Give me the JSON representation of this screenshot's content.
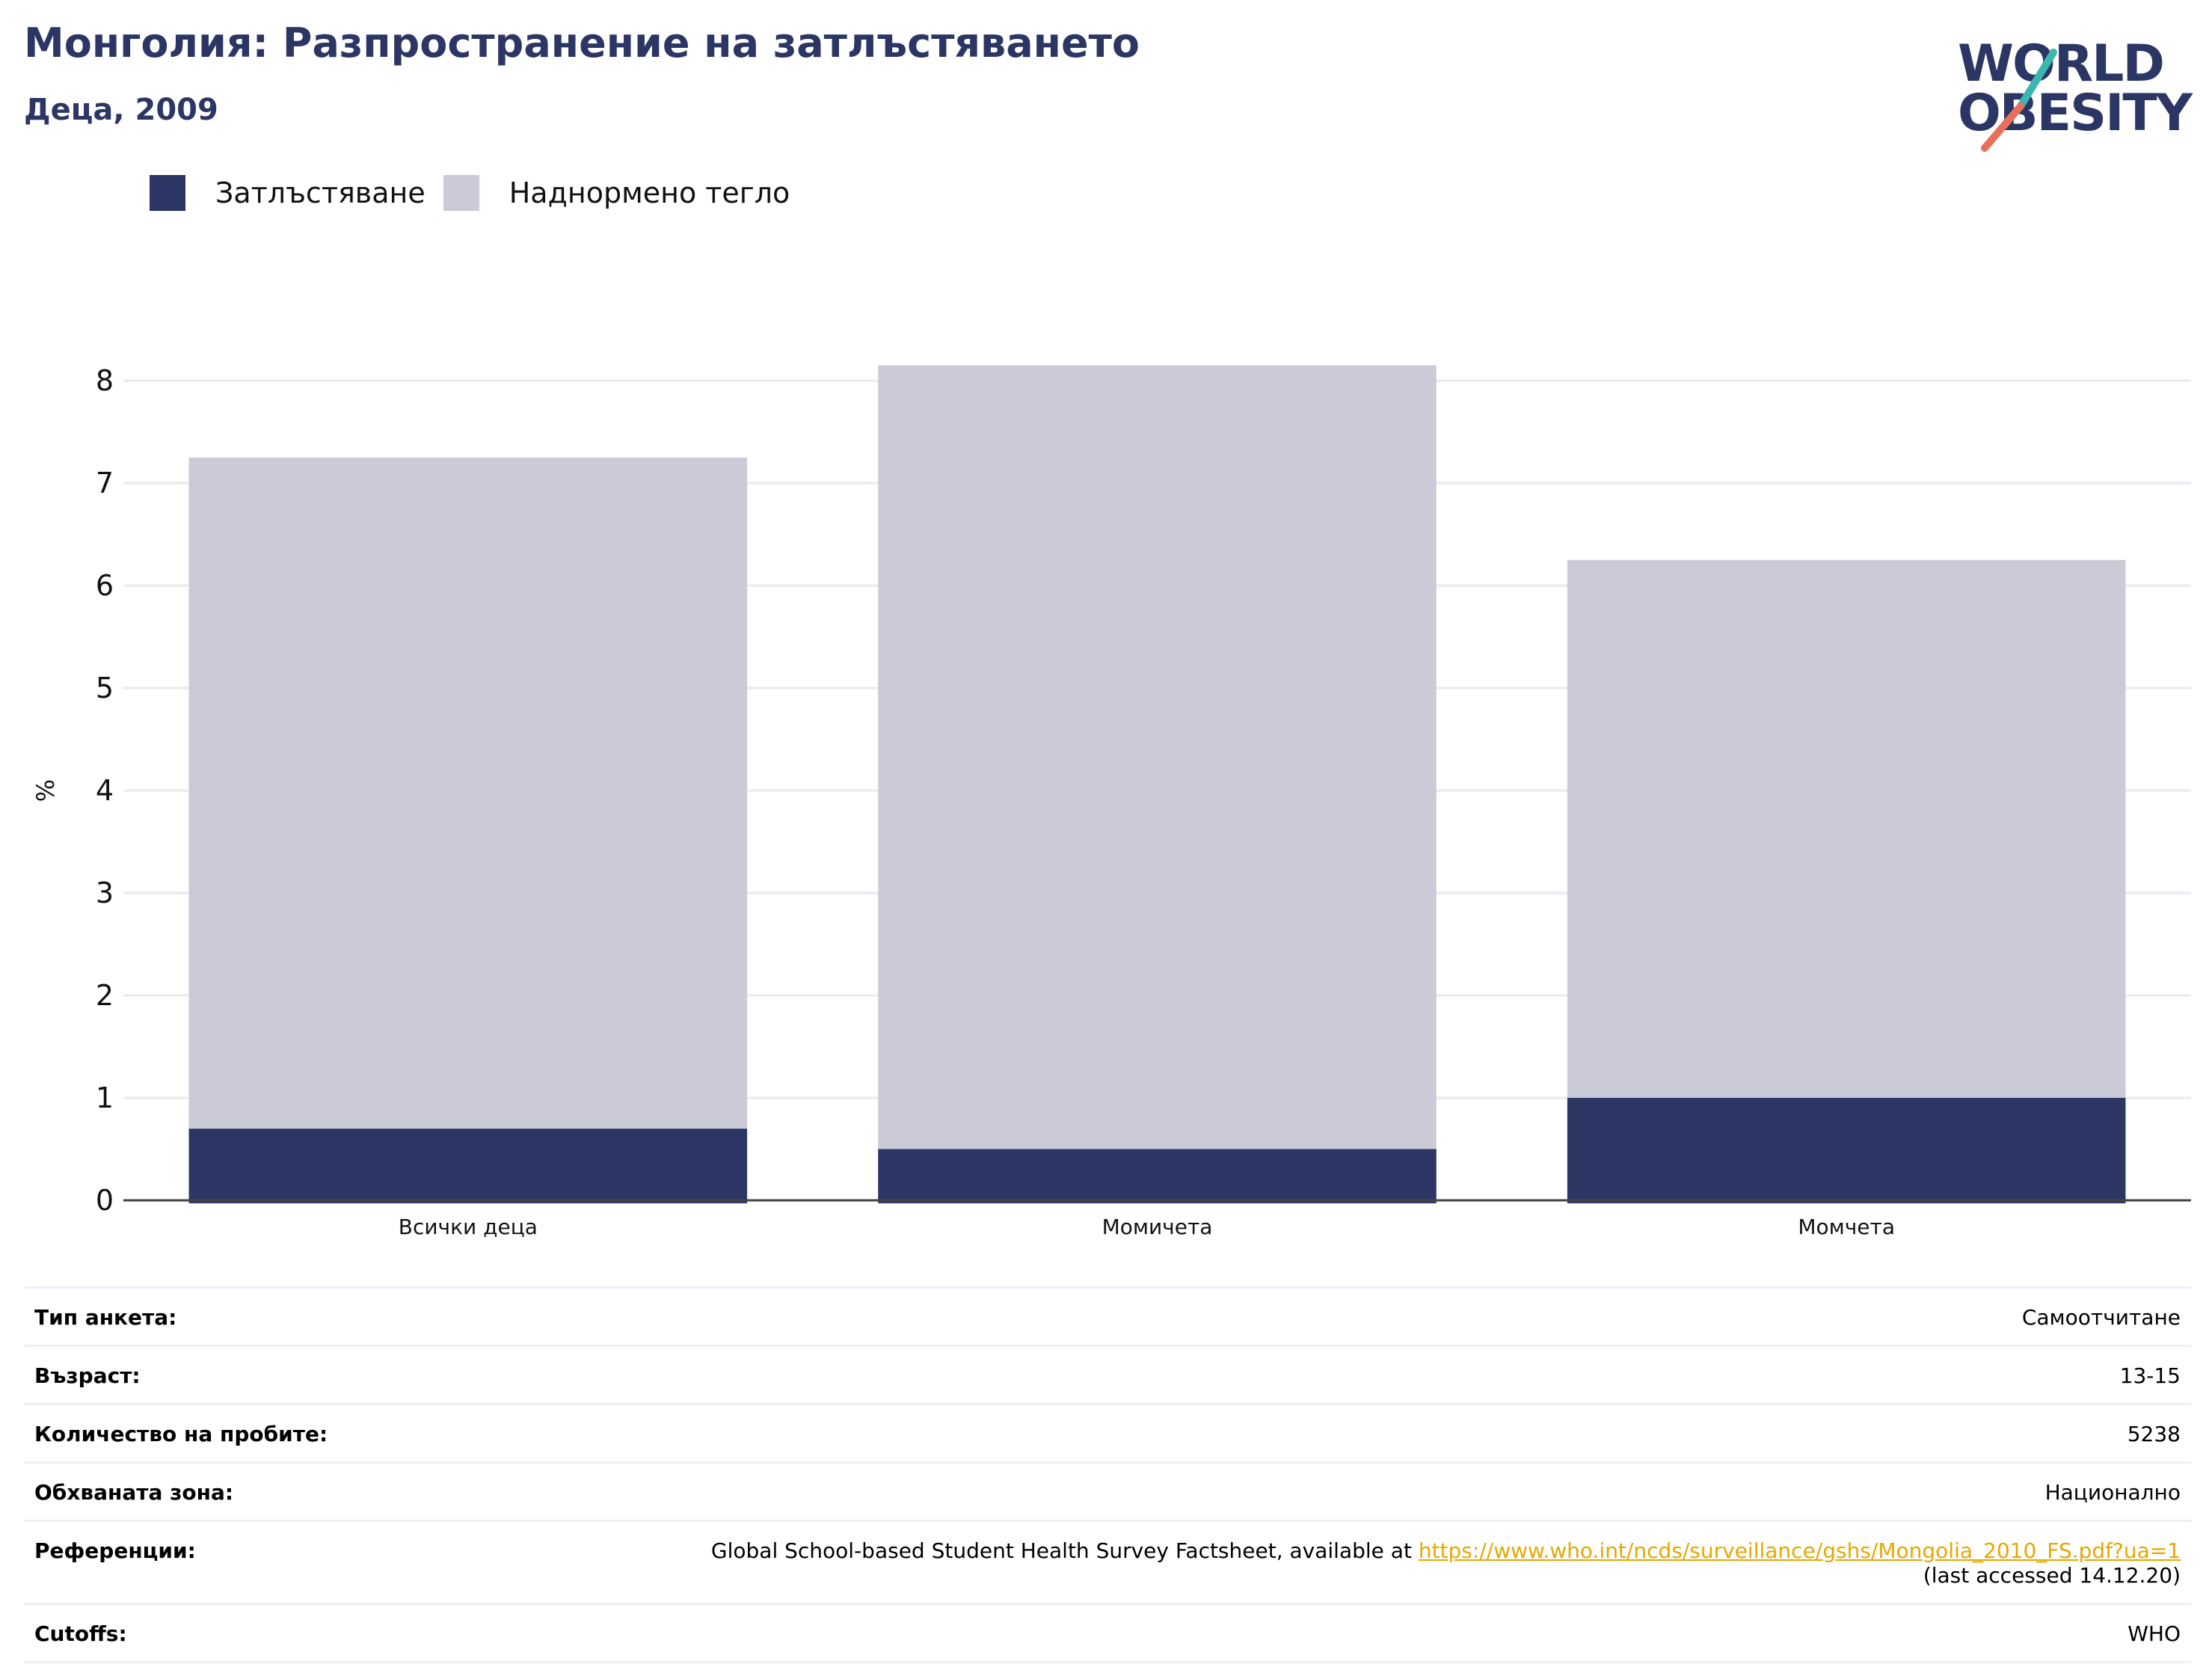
{
  "header": {
    "title": "Монголия: Разпространение на затлъстяването",
    "subtitle": "Деца, 2009"
  },
  "logo": {
    "line1": "WORLD",
    "line2": "OBESITY"
  },
  "colors": {
    "obesity": "#2b3664",
    "overweight": "#cacbd7",
    "title": "#2b3664",
    "link": "#e8a800",
    "logo_teal": "#3bb6b0",
    "logo_coral": "#e8705a"
  },
  "chart_data": {
    "type": "bar",
    "stacked": true,
    "categories": [
      "Всички деца",
      "Момичета",
      "Момчета"
    ],
    "series": [
      {
        "name": "Затлъстяване",
        "values": [
          0.7,
          0.5,
          1.0
        ]
      },
      {
        "name": "Наднормено тегло",
        "values": [
          6.55,
          7.65,
          5.25
        ]
      }
    ],
    "ylabel": "%",
    "ylim": [
      0,
      8.5
    ],
    "yticks": [
      "0",
      "1",
      "2",
      "3",
      "4",
      "5",
      "6",
      "7",
      "8"
    ],
    "grid": true,
    "legend": "top-left"
  },
  "info": {
    "rows": [
      {
        "label": "Тип анкета:",
        "value": "Самоотчитане"
      },
      {
        "label": "Възраст:",
        "value": "13-15"
      },
      {
        "label": "Количество на пробите:",
        "value": "5238"
      },
      {
        "label": "Обхваната зона:",
        "value": "Национално"
      }
    ],
    "references": {
      "label": "Референции:",
      "text": "Global School-based Student Health Survey Factsheet, available at ",
      "link": "https://www.who.int/ncds/surveillance/gshs/Mongolia_2010_FS.pdf?ua=1",
      "accessed": "(last accessed 14.12.20)"
    },
    "cutoffs": {
      "label": "Cutoffs:",
      "value": "WHO"
    }
  }
}
